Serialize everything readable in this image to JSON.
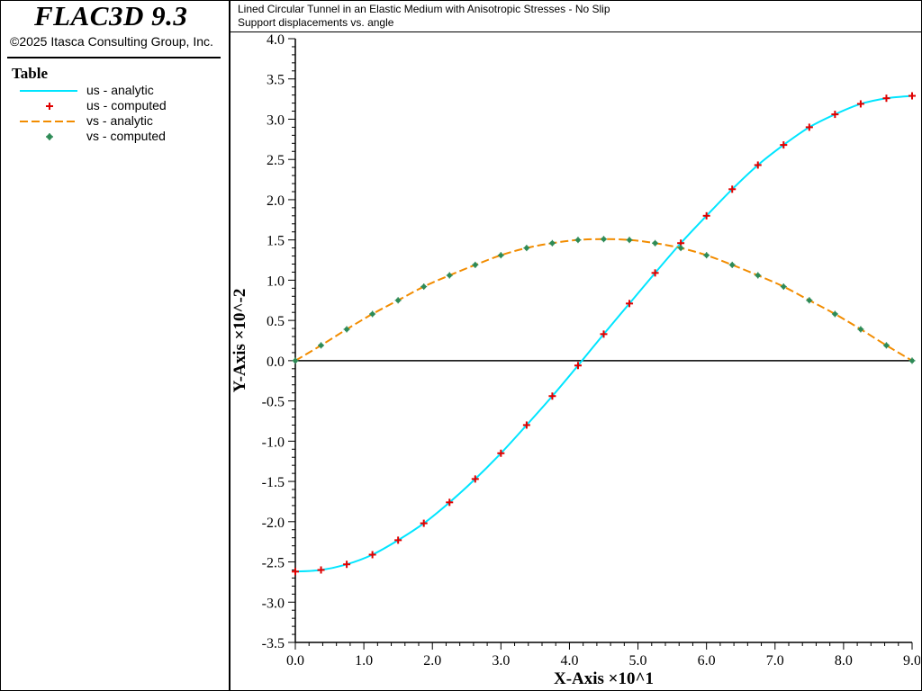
{
  "app": {
    "title": "FLAC3D 9.3",
    "copyright": "©2025 Itasca Consulting Group, Inc."
  },
  "legend": {
    "heading": "Table",
    "items": [
      {
        "label": "us - analytic",
        "kind": "line",
        "color": "#00e5ff",
        "dash": false
      },
      {
        "label": "us - computed",
        "kind": "plus",
        "color": "#e00000"
      },
      {
        "label": "vs - analytic",
        "kind": "line",
        "color": "#f28c00",
        "dash": true
      },
      {
        "label": "vs - computed",
        "kind": "star",
        "color": "#2e8b57"
      }
    ]
  },
  "chart_data": {
    "type": "line",
    "title": "Lined Circular Tunnel in an Elastic Medium with Anisotropic Stresses - No Slip",
    "subtitle": "Support displacements vs. angle",
    "xlabel": "X-Axis ×10^1",
    "ylabel": "Y-Axis ×10^-2",
    "xlim": [
      0,
      9
    ],
    "ylim": [
      -3.5,
      4.0
    ],
    "x_ticks": [
      "0.0",
      "1.0",
      "2.0",
      "3.0",
      "4.0",
      "5.0",
      "6.0",
      "7.0",
      "8.0",
      "9.0"
    ],
    "y_ticks": [
      "4.0",
      "3.5",
      "3.0",
      "2.5",
      "2.0",
      "1.5",
      "1.0",
      "0.5",
      "0.0",
      "-0.5",
      "-1.0",
      "-1.5",
      "-2.0",
      "-2.5",
      "-3.0",
      "-3.5"
    ],
    "x": [
      0.0,
      0.375,
      0.75,
      1.125,
      1.5,
      1.875,
      2.25,
      2.625,
      3.0,
      3.375,
      3.75,
      4.125,
      4.5,
      4.875,
      5.25,
      5.625,
      6.0,
      6.375,
      6.75,
      7.125,
      7.5,
      7.875,
      8.25,
      8.625,
      9.0
    ],
    "series": [
      {
        "name": "us - analytic",
        "style": "line",
        "color": "#00e5ff",
        "values": [
          -2.62,
          -2.6,
          -2.53,
          -2.41,
          -2.23,
          -2.02,
          -1.76,
          -1.47,
          -1.15,
          -0.8,
          -0.44,
          -0.06,
          0.33,
          0.71,
          1.09,
          1.46,
          1.8,
          2.13,
          2.43,
          2.68,
          2.9,
          3.06,
          3.19,
          3.26,
          3.29
        ]
      },
      {
        "name": "us - computed",
        "style": "plus",
        "color": "#e00000",
        "values": [
          -2.62,
          -2.6,
          -2.53,
          -2.41,
          -2.23,
          -2.02,
          -1.76,
          -1.47,
          -1.15,
          -0.8,
          -0.44,
          -0.06,
          0.33,
          0.71,
          1.09,
          1.46,
          1.8,
          2.13,
          2.43,
          2.68,
          2.9,
          3.06,
          3.19,
          3.26,
          3.29
        ]
      },
      {
        "name": "vs - analytic",
        "style": "dash",
        "color": "#f28c00",
        "values": [
          0.0,
          0.19,
          0.39,
          0.58,
          0.75,
          0.92,
          1.06,
          1.19,
          1.31,
          1.4,
          1.46,
          1.5,
          1.51,
          1.5,
          1.46,
          1.4,
          1.31,
          1.19,
          1.06,
          0.92,
          0.75,
          0.58,
          0.39,
          0.19,
          0.0
        ]
      },
      {
        "name": "vs - computed",
        "style": "star",
        "color": "#2e8b57",
        "values": [
          0.0,
          0.19,
          0.39,
          0.58,
          0.75,
          0.92,
          1.06,
          1.19,
          1.31,
          1.4,
          1.46,
          1.5,
          1.51,
          1.5,
          1.46,
          1.4,
          1.31,
          1.19,
          1.06,
          0.92,
          0.75,
          0.58,
          0.39,
          0.19,
          0.0
        ]
      }
    ]
  }
}
